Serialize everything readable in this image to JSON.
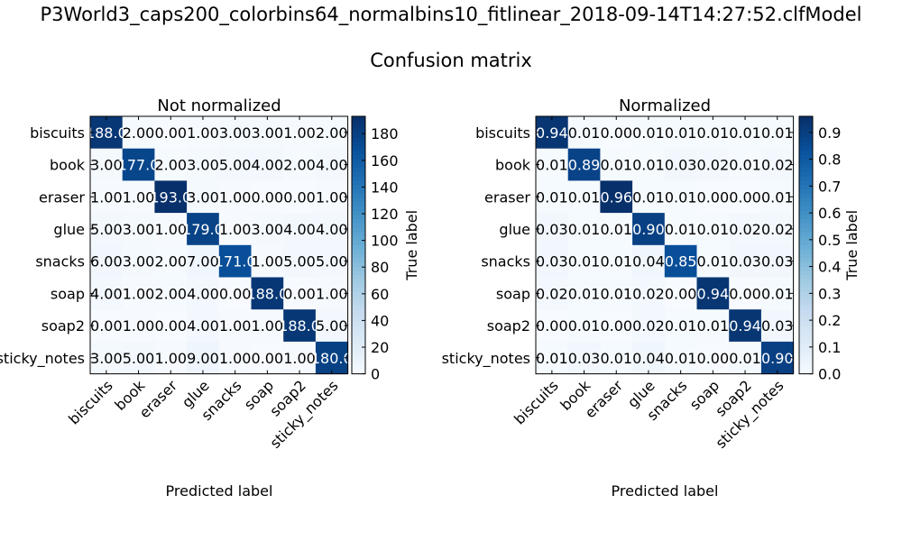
{
  "figure": {
    "title": "P3World3_caps200_colorbins64_normalbins10_fitlinear_2018-09-14T14:27:52.clfModel",
    "subtitle": "Confusion matrix"
  },
  "chart_data": [
    {
      "type": "heatmap",
      "title": "Not normalized",
      "xlabel": "Predicted label",
      "ylabel": "True label",
      "colormap": "Blues",
      "colorbar": {
        "ticks": [
          0,
          20,
          40,
          60,
          80,
          100,
          120,
          140,
          160,
          180
        ],
        "range": [
          0,
          193
        ]
      },
      "row_labels": [
        "biscuits",
        "book",
        "eraser",
        "glue",
        "snacks",
        "soap",
        "soap2",
        "sticky_notes"
      ],
      "col_labels": [
        "biscuits",
        "book",
        "eraser",
        "glue",
        "snacks",
        "soap",
        "soap2",
        "sticky_notes"
      ],
      "values": [
        [
          188,
          2,
          0,
          1,
          3,
          3,
          1,
          2
        ],
        [
          3,
          177,
          2,
          3,
          5,
          4,
          2,
          4
        ],
        [
          1,
          1,
          193,
          3,
          1,
          0,
          0,
          1
        ],
        [
          5,
          3,
          1,
          179,
          1,
          3,
          4,
          4
        ],
        [
          6,
          3,
          2,
          7,
          171,
          1,
          5,
          5
        ],
        [
          4,
          1,
          2,
          4,
          0,
          188,
          0,
          1
        ],
        [
          0,
          1,
          0,
          4,
          1,
          1,
          188,
          5
        ],
        [
          3,
          5,
          1,
          9,
          1,
          0,
          1,
          180
        ]
      ],
      "cell_text": [
        [
          "188.0",
          "2.00",
          "0.00",
          "1.00",
          "3.00",
          "3.00",
          "1.00",
          "2.00"
        ],
        [
          "3.00",
          "177.0",
          "2.00",
          "3.00",
          "5.00",
          "4.00",
          "2.00",
          "4.00"
        ],
        [
          "1.00",
          "1.00",
          "193.0",
          "3.00",
          "1.00",
          "0.00",
          "0.00",
          "1.00"
        ],
        [
          "5.00",
          "3.00",
          "1.00",
          "179.0",
          "1.00",
          "3.00",
          "4.00",
          "4.00"
        ],
        [
          "6.00",
          "3.00",
          "2.00",
          "7.00",
          "171.0",
          "1.00",
          "5.00",
          "5.00"
        ],
        [
          "4.00",
          "1.00",
          "2.00",
          "4.00",
          "0.00",
          "188.0",
          "0.00",
          "1.00"
        ],
        [
          "0.00",
          "1.00",
          "0.00",
          "4.00",
          "1.00",
          "1.00",
          "188.0",
          "5.00"
        ],
        [
          "3.00",
          "5.00",
          "1.00",
          "9.00",
          "1.00",
          "0.00",
          "1.00",
          "180.0"
        ]
      ]
    },
    {
      "type": "heatmap",
      "title": "Normalized",
      "xlabel": "Predicted label",
      "ylabel": "True label",
      "colormap": "Blues",
      "colorbar": {
        "ticks": [
          0.0,
          0.1,
          0.2,
          0.3,
          0.4,
          0.5,
          0.6,
          0.7,
          0.8,
          0.9
        ],
        "range": [
          0,
          0.96
        ]
      },
      "row_labels": [
        "biscuits",
        "book",
        "eraser",
        "glue",
        "snacks",
        "soap",
        "soap2",
        "sticky_notes"
      ],
      "col_labels": [
        "biscuits",
        "book",
        "eraser",
        "glue",
        "snacks",
        "soap",
        "soap2",
        "sticky_notes"
      ],
      "values": [
        [
          0.94,
          0.01,
          0.0,
          0.01,
          0.01,
          0.01,
          0.01,
          0.01
        ],
        [
          0.01,
          0.89,
          0.01,
          0.01,
          0.03,
          0.02,
          0.01,
          0.02
        ],
        [
          0.01,
          0.01,
          0.96,
          0.01,
          0.01,
          0.0,
          0.0,
          0.01
        ],
        [
          0.03,
          0.01,
          0.01,
          0.9,
          0.01,
          0.01,
          0.02,
          0.02
        ],
        [
          0.03,
          0.01,
          0.01,
          0.04,
          0.85,
          0.01,
          0.03,
          0.03
        ],
        [
          0.02,
          0.01,
          0.01,
          0.02,
          0.0,
          0.94,
          0.0,
          0.01
        ],
        [
          0.0,
          0.01,
          0.0,
          0.02,
          0.01,
          0.01,
          0.94,
          0.03
        ],
        [
          0.01,
          0.03,
          0.01,
          0.04,
          0.01,
          0.0,
          0.01,
          0.9
        ]
      ],
      "cell_text": [
        [
          "0.94",
          "0.01",
          "0.00",
          "0.01",
          "0.01",
          "0.01",
          "0.01",
          "0.01"
        ],
        [
          "0.01",
          "0.89",
          "0.01",
          "0.01",
          "0.03",
          "0.02",
          "0.01",
          "0.02"
        ],
        [
          "0.01",
          "0.01",
          "0.96",
          "0.01",
          "0.01",
          "0.00",
          "0.00",
          "0.01"
        ],
        [
          "0.03",
          "0.01",
          "0.01",
          "0.90",
          "0.01",
          "0.01",
          "0.02",
          "0.02"
        ],
        [
          "0.03",
          "0.01",
          "0.01",
          "0.04",
          "0.85",
          "0.01",
          "0.03",
          "0.03"
        ],
        [
          "0.02",
          "0.01",
          "0.01",
          "0.02",
          "0.00",
          "0.94",
          "0.00",
          "0.01"
        ],
        [
          "0.00",
          "0.01",
          "0.00",
          "0.02",
          "0.01",
          "0.01",
          "0.94",
          "0.03"
        ],
        [
          "0.01",
          "0.03",
          "0.01",
          "0.04",
          "0.01",
          "0.00",
          "0.01",
          "0.90"
        ]
      ]
    }
  ]
}
